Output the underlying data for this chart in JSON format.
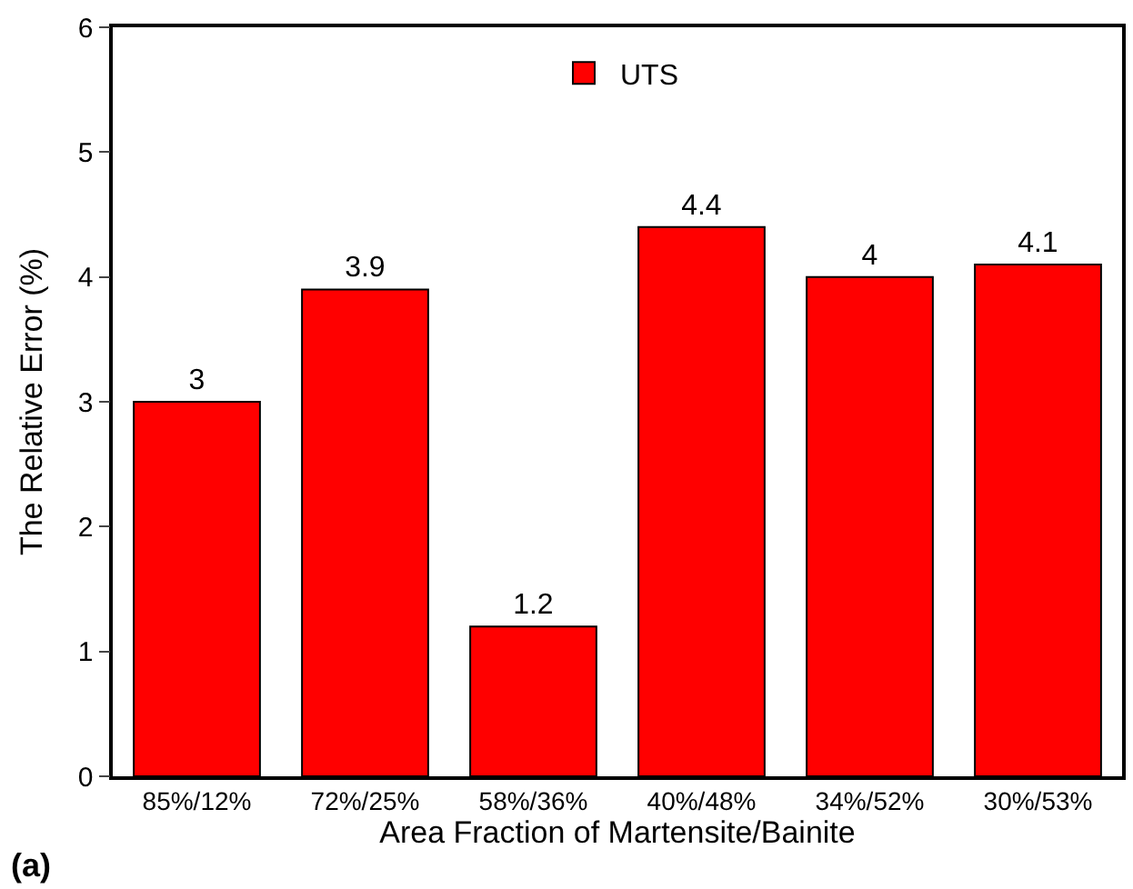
{
  "chart_data": {
    "type": "bar",
    "xlabel": "Area Fraction of Martensite/Bainite",
    "ylabel": "The Relative Error (%)",
    "categories": [
      "85%/12%",
      "72%/25%",
      "58%/36%",
      "40%/48%",
      "34%/52%",
      "30%/53%"
    ],
    "series": [
      {
        "name": "UTS",
        "color": "#ff0000",
        "values": [
          3,
          3.9,
          1.2,
          4.4,
          4,
          4.1
        ]
      }
    ],
    "ylim": [
      0,
      6
    ],
    "yticks": [
      0,
      1,
      2,
      3,
      4,
      5,
      6
    ],
    "data_labels": true,
    "legend": "top",
    "annotations": [
      "(a)"
    ]
  }
}
